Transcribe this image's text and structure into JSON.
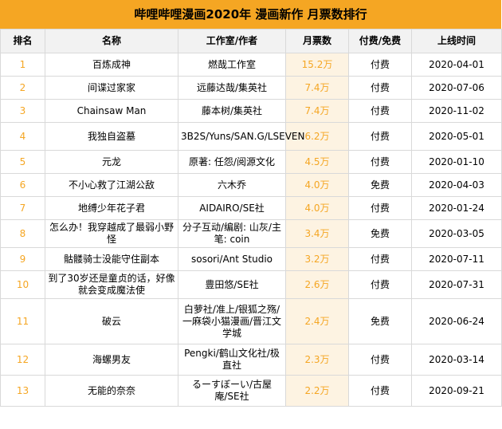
{
  "title": "哔哩哔哩漫画2020年 漫画新作 月票数排行",
  "columns": [
    "排名",
    "名称",
    "工作室/作者",
    "月票数",
    "付费/免费",
    "上线时间"
  ],
  "rows": [
    {
      "rank": "1",
      "name": "百炼成神",
      "author": "燃哉工作室",
      "votes": "15.2万",
      "paid": "付费",
      "date": "2020-04-01"
    },
    {
      "rank": "2",
      "name": "间谍过家家",
      "author": "远藤达哉/集英社",
      "votes": "7.4万",
      "paid": "付费",
      "date": "2020-07-06"
    },
    {
      "rank": "3",
      "name": "Chainsaw Man",
      "author": "藤本树/集英社",
      "votes": "7.4万",
      "paid": "付费",
      "date": "2020-11-02"
    },
    {
      "rank": "4",
      "name": "我独自盗墓",
      "author": "3B2S/Yuns/SAN.G/LSEVEN",
      "votes": "6.2万",
      "paid": "付费",
      "date": "2020-05-01"
    },
    {
      "rank": "5",
      "name": "元龙",
      "author": "原著: 任怨/阅源文化",
      "votes": "4.5万",
      "paid": "付费",
      "date": "2020-01-10"
    },
    {
      "rank": "6",
      "name": "不小心救了江湖公敌",
      "author": "六木乔",
      "votes": "4.0万",
      "paid": "免费",
      "date": "2020-04-03"
    },
    {
      "rank": "7",
      "name": "地缚少年花子君",
      "author": "AIDAIRO/SE社",
      "votes": "4.0万",
      "paid": "付费",
      "date": "2020-01-24"
    },
    {
      "rank": "8",
      "name": "怎么办！我穿越成了最弱小野怪",
      "author": "分子互动/编剧: 山灰/主笔: coin",
      "votes": "3.4万",
      "paid": "免费",
      "date": "2020-03-05"
    },
    {
      "rank": "9",
      "name": "骷髅骑士没能守住副本",
      "author": "sosori/Ant Studio",
      "votes": "3.2万",
      "paid": "付费",
      "date": "2020-07-11"
    },
    {
      "rank": "10",
      "name": "到了30岁还是童贞的话，好像就会变成魔法使",
      "author": "豊田悠/SE社",
      "votes": "2.6万",
      "paid": "付费",
      "date": "2020-07-31"
    },
    {
      "rank": "11",
      "name": "破云",
      "author": "白萝社/准上/银狐之殇/一麻袋小猫漫画/晋江文学城",
      "votes": "2.4万",
      "paid": "免费",
      "date": "2020-06-24"
    },
    {
      "rank": "12",
      "name": "海螺男友",
      "author": "Pengki/鹤山文化社/极直社",
      "votes": "2.3万",
      "paid": "付费",
      "date": "2020-03-14"
    },
    {
      "rank": "13",
      "name": "无能的奈奈",
      "author": "るーすぼーい/古屋庵/SE社",
      "votes": "2.2万",
      "paid": "付费",
      "date": "2020-09-21"
    }
  ]
}
